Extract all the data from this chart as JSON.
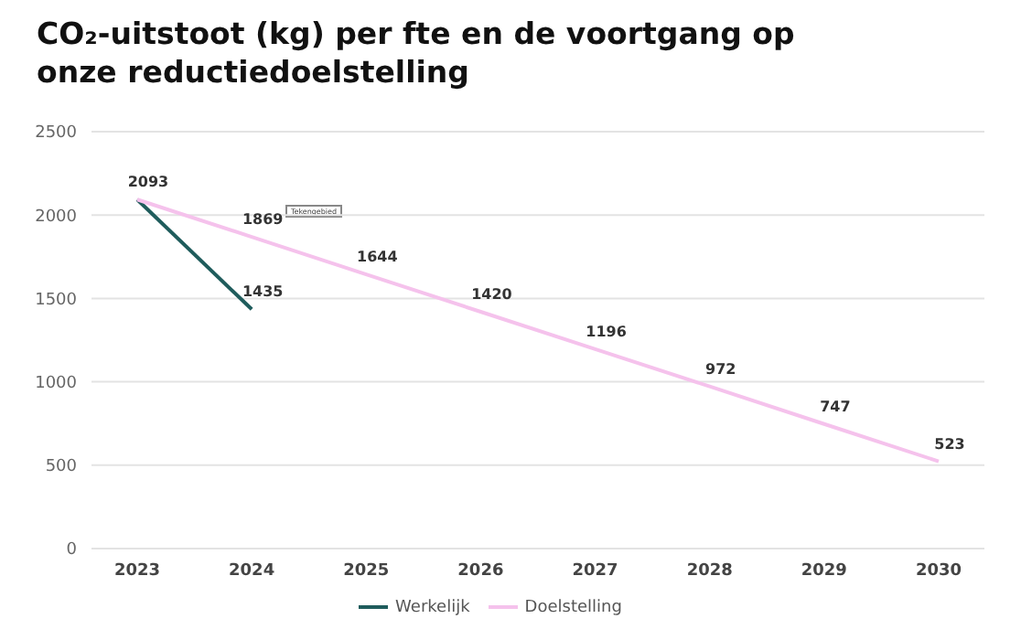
{
  "chart_data": {
    "type": "line",
    "title": "CO₂-uitstoot (kg) per fte en de voortgang op onze reductiedoelstelling",
    "categories": [
      "2023",
      "2024",
      "2025",
      "2026",
      "2027",
      "2028",
      "2029",
      "2030"
    ],
    "series": [
      {
        "name": "Werkelijk",
        "color": "#1f5c5c",
        "values": [
          2093,
          1435,
          null,
          null,
          null,
          null,
          null,
          null
        ],
        "value_labels": [
          null,
          "1435",
          null,
          null,
          null,
          null,
          null,
          null
        ]
      },
      {
        "name": "Doelstelling",
        "color": "#f5c2ec",
        "values": [
          2093,
          1869,
          1644,
          1420,
          1196,
          972,
          747,
          523
        ],
        "value_labels": [
          "2093",
          "1869",
          "1644",
          "1420",
          "1196",
          "972",
          "747",
          "523"
        ]
      }
    ],
    "ylim": [
      0,
      2500
    ],
    "yticks": [
      0,
      500,
      1000,
      1500,
      2000,
      2500
    ],
    "grid": "y",
    "legend": "bottom",
    "marker": "none",
    "line_style": "solid",
    "annotations": [
      "Tekengebied"
    ]
  }
}
